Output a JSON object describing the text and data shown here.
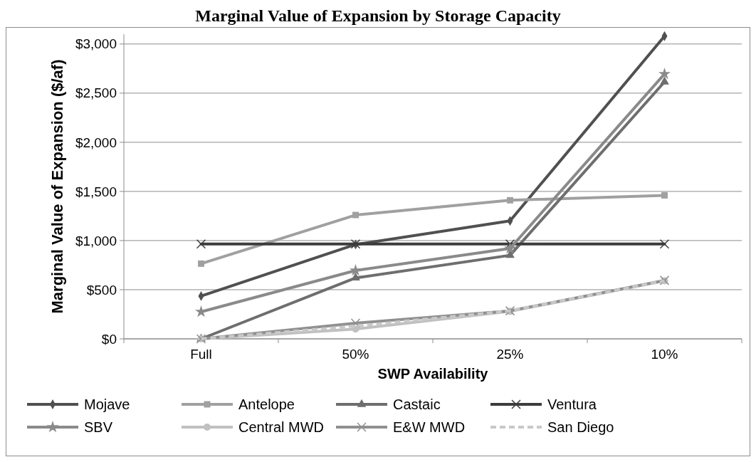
{
  "chart_data": {
    "type": "line",
    "title": "Marginal Value of Expansion by Storage Capacity",
    "xlabel": "SWP Availability",
    "ylabel": "Marginal Value of Expansion ($/af)",
    "categories": [
      "Full",
      "50%",
      "25%",
      "10%"
    ],
    "ylim": [
      0,
      3100
    ],
    "yticks": [
      {
        "value": 0,
        "label": "$0"
      },
      {
        "value": 500,
        "label": "$500"
      },
      {
        "value": 1000,
        "label": "$1,000"
      },
      {
        "value": 1500,
        "label": "$1,500"
      },
      {
        "value": 2000,
        "label": "$2,000"
      },
      {
        "value": 2500,
        "label": "$2,500"
      },
      {
        "value": 3000,
        "label": "$3,000"
      }
    ],
    "grid": "y",
    "legend": "bottom",
    "series": [
      {
        "name": "Mojave",
        "color": "#505050",
        "marker": "diamond",
        "values": [
          435,
          960,
          1200,
          3080
        ]
      },
      {
        "name": "Antelope",
        "color": "#a0a0a0",
        "marker": "square",
        "values": [
          765,
          1260,
          1410,
          1460
        ]
      },
      {
        "name": "Castaic",
        "color": "#6e6e6e",
        "marker": "triangle",
        "values": [
          0,
          620,
          850,
          2615
        ]
      },
      {
        "name": "Ventura",
        "color": "#3c3c3c",
        "marker": "cross",
        "values": [
          965,
          965,
          965,
          965
        ]
      },
      {
        "name": "SBV",
        "color": "#8a8a8a",
        "marker": "star",
        "values": [
          275,
          695,
          920,
          2695
        ]
      },
      {
        "name": "Central MWD",
        "color": "#c0c0c0",
        "marker": "circle",
        "values": [
          0,
          100,
          280,
          590
        ]
      },
      {
        "name": "E&W MWD",
        "color": "#909090",
        "marker": "cross",
        "values": [
          0,
          160,
          285,
          595
        ]
      },
      {
        "name": "San Diego",
        "color": "#c8c8c8",
        "marker": "none",
        "line_style": "dashed",
        "values": [
          0,
          130,
          285,
          590
        ]
      }
    ]
  }
}
